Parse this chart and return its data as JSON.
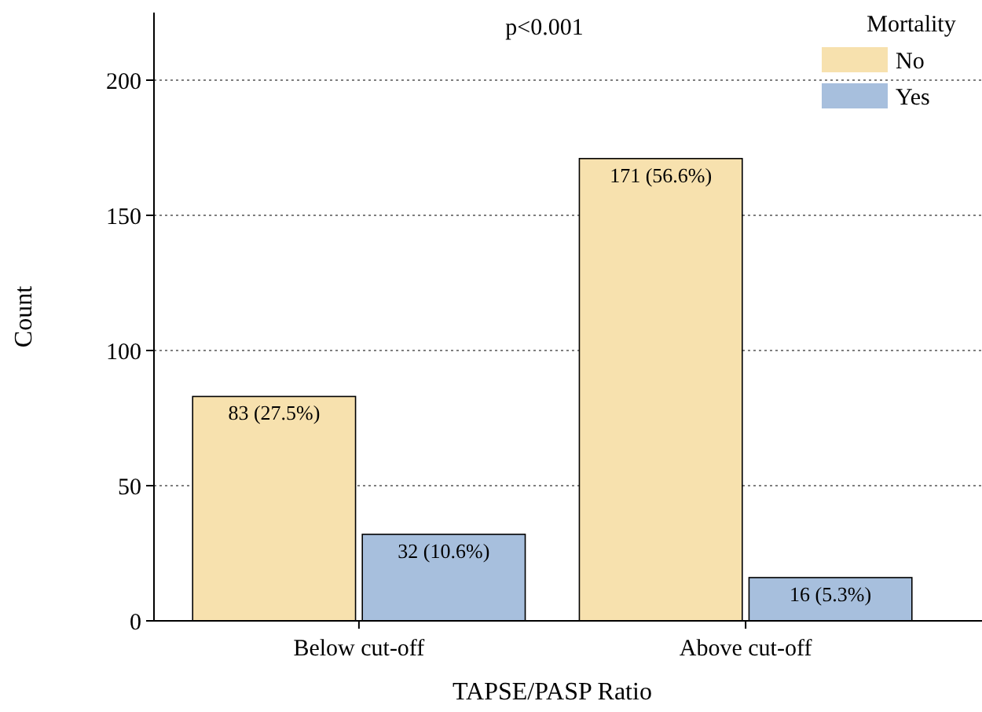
{
  "chart_data": {
    "type": "bar",
    "xlabel": "TAPSE/PASP Ratio",
    "ylabel": "Count",
    "legend_title": "Mortality",
    "categories": [
      "Below cut-off",
      "Above cut-off"
    ],
    "series": [
      {
        "name": "No",
        "color": "#f7e1ae",
        "values": [
          83,
          171
        ],
        "value_labels": [
          "83 (27.5%)",
          "171 (56.6%)"
        ]
      },
      {
        "name": "Yes",
        "color": "#a7bfdd",
        "values": [
          32,
          16
        ],
        "value_labels": [
          "32 (10.6%)",
          "16 (5.3%)"
        ]
      }
    ],
    "ylim": [
      0,
      225
    ],
    "yticks": [
      0,
      50,
      100,
      150,
      200
    ],
    "grid": "y",
    "legend": "top right",
    "annotations": [
      "p<0.001"
    ]
  }
}
